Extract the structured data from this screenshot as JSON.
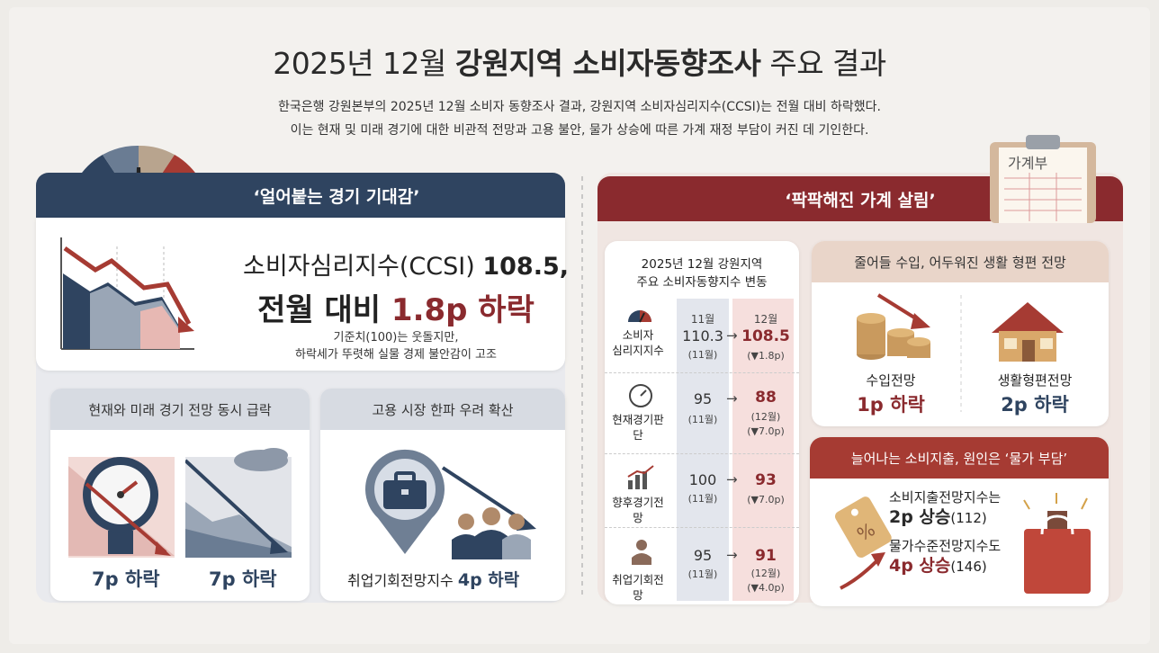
{
  "title": {
    "prefix": "2025년 12월 ",
    "bold": "강원지역 소비자동향조사",
    "suffix": " 주요 결과"
  },
  "intro": {
    "line1": "한국은행 강원본부의 2025년 12월 소비자 동향조사 결과, 강원지역 소비자심리지수(CCSI)는 전월 대비 하락했다.",
    "line2": "이는 현재 및 미래 경기에 대한 비관적 전망과 고용 불안, 물가 상승에 따른 가계 재정 부담이 커진 데 기인한다."
  },
  "left": {
    "header": "‘얼어붙는 경기 기대감’",
    "ccsi": {
      "line1_pre": "소비자심리지수(CCSI) ",
      "line1_val": "108.5,",
      "line2_pre": "전월 대비 ",
      "line2_val": "1.8p 하락",
      "note1": "기준치(100)는 웃돌지만,",
      "note2": "하락세가 뚜렷해 실물 경제 불안감이 고조"
    },
    "card1": {
      "header": "현재와 미래 경기 전망 동시 급락",
      "val1": "7p 하락",
      "val2": "7p 하락"
    },
    "card2": {
      "header": "고용 시장 한파 우려 확산",
      "text_pre": "취업기회전망지수 ",
      "text_val": "4p 하락"
    }
  },
  "right": {
    "header": "‘팍팍해진 가계 살림’",
    "board_tag": "가계부",
    "table": {
      "title1": "2025년 12월 강원지역",
      "title2": "주요 소비자동향지수 변동",
      "col_nov": "11월",
      "col_dec": "12월",
      "arrow": "→",
      "rows": [
        {
          "label1": "소비자",
          "label2": "심리지지수",
          "nov": "110.3",
          "nov_sub": "(11월)",
          "dec": "108.5",
          "chg": "(▼1.8p)"
        },
        {
          "label1": "현재경기판단",
          "label2": "",
          "nov": "95",
          "nov_sub": "(11월)",
          "dec": "88",
          "dec_sub": "(12월)",
          "chg": "(▼7.0p)"
        },
        {
          "label1": "향후경기전망",
          "label2": "",
          "nov": "100",
          "nov_sub": "(11월)",
          "dec": "93",
          "chg": "(▼7.0p)"
        },
        {
          "label1": "취업기회전망",
          "label2": "",
          "nov": "95",
          "nov_sub": "(11월)",
          "dec": "91",
          "dec_sub": "(12월)",
          "chg": "(▼4.0p)"
        }
      ]
    },
    "income": {
      "header": "줄어들 수입, 어두워진 생활 형편 전망",
      "item1_label": "수입전망",
      "item1_val": "1p 하락",
      "item2_label": "생활형편전망",
      "item2_val": "2p 하락"
    },
    "spend": {
      "header": "늘어나는 소비지출, 원인은 ‘물가 부담’",
      "l1": "소비지출전망지수는",
      "l2_val": "2p 상승",
      "l2_sub": "(112)",
      "l3": "물가수준전망지수도",
      "l4_val": "4p 상승",
      "l4_sub": "(146)",
      "tag_symbol": "%"
    }
  },
  "colors": {
    "navy": "#2f4460",
    "maroon": "#8a2a2e",
    "red": "#a63b33"
  }
}
